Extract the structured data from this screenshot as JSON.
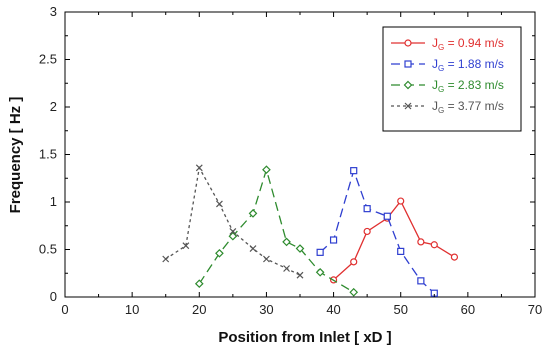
{
  "chart_data": {
    "type": "line",
    "xlabel": "Position from Inlet [ xD ]",
    "ylabel": "Frequency [ Hz ]",
    "xlim": [
      0,
      70
    ],
    "ylim": [
      0,
      3
    ],
    "xticks": [
      0,
      10,
      20,
      30,
      40,
      50,
      60,
      70
    ],
    "yticks": [
      0,
      0.5,
      1,
      1.5,
      2,
      2.5,
      3
    ],
    "xtick_labels": [
      "0",
      "10",
      "20",
      "30",
      "40",
      "50",
      "60",
      "70"
    ],
    "ytick_labels": [
      "0",
      "0.5",
      "1",
      "1.5",
      "2",
      "2.5",
      "3"
    ],
    "grid": false,
    "legend_position": "top-right",
    "series": [
      {
        "legend_prefix": "J",
        "legend_sub": "G",
        "legend_value": " = 0.94 m/s",
        "color": "#e03030",
        "marker": "circle",
        "dash": "solid",
        "x": [
          40,
          43,
          45,
          48,
          50,
          53,
          55,
          58
        ],
        "y": [
          0.18,
          0.37,
          0.69,
          0.83,
          1.01,
          0.58,
          0.55,
          0.42
        ]
      },
      {
        "legend_prefix": "J",
        "legend_sub": "G",
        "legend_value": " = 1.88 m/s",
        "color": "#2f3fd0",
        "marker": "square",
        "dash": "dashed",
        "x": [
          38,
          40,
          43,
          45,
          48,
          50,
          53,
          55
        ],
        "y": [
          0.47,
          0.6,
          1.33,
          0.93,
          0.85,
          0.48,
          0.17,
          0.04
        ]
      },
      {
        "legend_prefix": "J",
        "legend_sub": "G",
        "legend_value": " = 2.83 m/s",
        "color": "#2e8b2e",
        "marker": "diamond",
        "dash": "dashed",
        "x": [
          20,
          23,
          25,
          28,
          30,
          33,
          35,
          38,
          43
        ],
        "y": [
          0.14,
          0.46,
          0.64,
          0.88,
          1.34,
          0.58,
          0.51,
          0.26,
          0.05
        ]
      },
      {
        "legend_prefix": "J",
        "legend_sub": "G",
        "legend_value": " = 3.77 m/s",
        "color": "#555555",
        "marker": "x",
        "dash": "dotted",
        "x": [
          15,
          18,
          20,
          23,
          25,
          28,
          30,
          33,
          35
        ],
        "y": [
          0.4,
          0.54,
          1.36,
          0.98,
          0.69,
          0.51,
          0.4,
          0.3,
          0.23
        ]
      }
    ]
  }
}
